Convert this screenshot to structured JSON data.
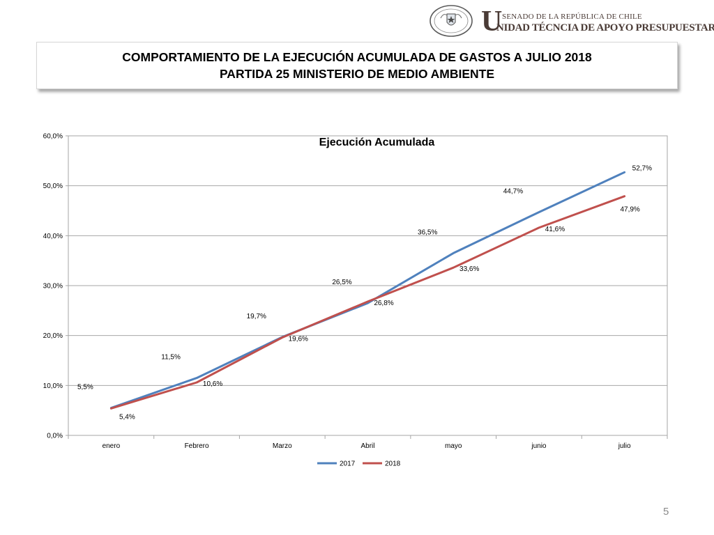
{
  "header": {
    "big_letter": "U",
    "institution": "SENADO DE LA REPÚBLICA DE CHILE",
    "unit": "NIDAD TÉCNCIA DE APOYO PRESUPUESTARIO",
    "seal_text": "REPÚBLICA DE CHILE",
    "seal_subtext": "SENADO"
  },
  "slide_title": {
    "line1": "COMPORTAMIENTO DE LA EJECUCIÓN ACUMULADA DE GASTOS A JULIO 2018",
    "line2": "PARTIDA 25 MINISTERIO DE MEDIO AMBIENTE"
  },
  "page_number": "5",
  "colors": {
    "series_2017": "#4F81BD",
    "series_2018": "#C0504D",
    "grid": "#a6a6a6"
  },
  "chart_data": {
    "type": "line",
    "title": "Ejecución Acumulada",
    "xlabel": "",
    "ylabel": "",
    "categories": [
      "enero",
      "Febrero",
      "Marzo",
      "Abril",
      "mayo",
      "junio",
      "julio"
    ],
    "series": [
      {
        "name": "2017",
        "values": [
          5.5,
          11.5,
          19.7,
          26.5,
          36.5,
          44.7,
          52.7
        ],
        "labels": [
          "5,5%",
          "11,5%",
          "19,7%",
          "26,5%",
          "36,5%",
          "44,7%",
          "52,7%"
        ]
      },
      {
        "name": "2018",
        "values": [
          5.4,
          10.6,
          19.6,
          26.8,
          33.6,
          41.6,
          47.9
        ],
        "labels": [
          "5,4%",
          "10,6%",
          "19,6%",
          "26,8%",
          "33,6%",
          "41,6%",
          "47,9%"
        ]
      }
    ],
    "ylim": [
      0,
      60
    ],
    "y_ticks": [
      0,
      10,
      20,
      30,
      40,
      50,
      60
    ],
    "y_tick_labels": [
      "0,0%",
      "10,0%",
      "20,0%",
      "30,0%",
      "40,0%",
      "50,0%",
      "60,0%"
    ],
    "grid": true,
    "legend": "bottom"
  }
}
